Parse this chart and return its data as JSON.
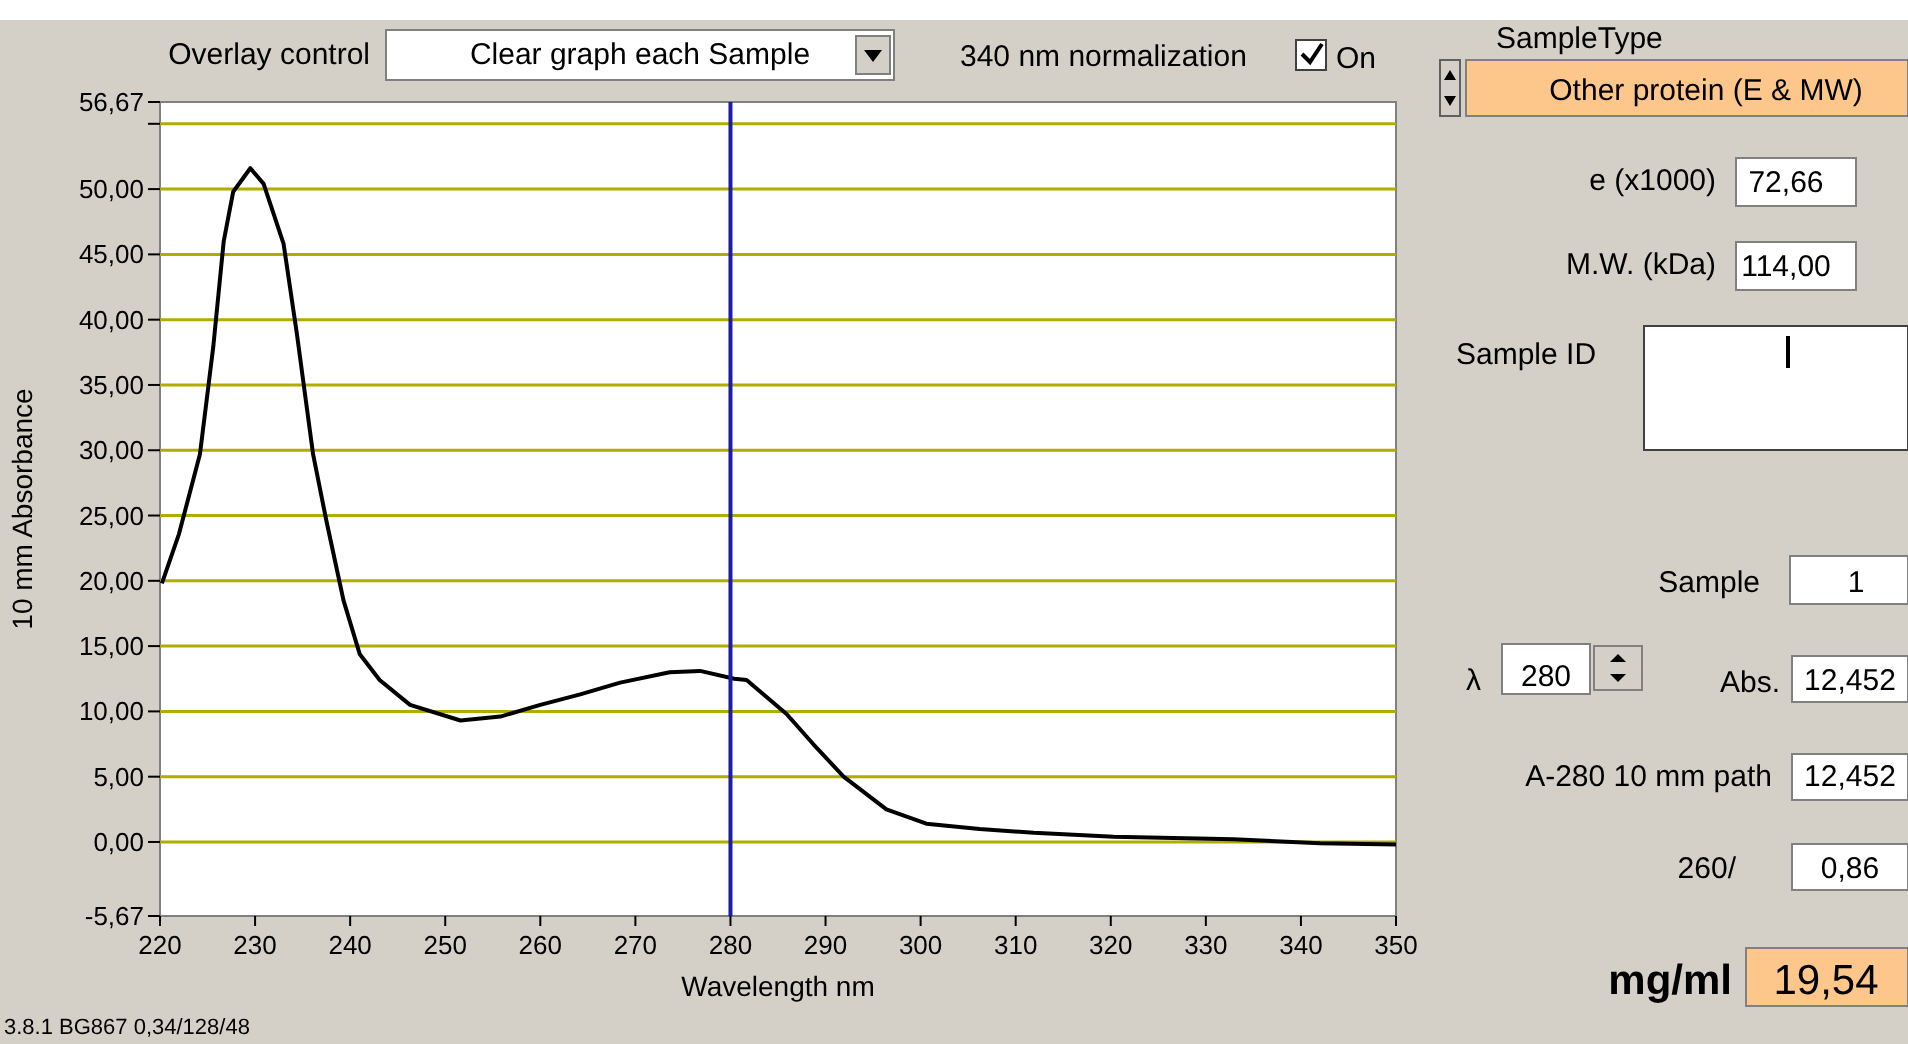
{
  "chart_data": [
    {
      "type": "line",
      "xlabel": "Wavelength nm",
      "ylabel": "10 mm Absorbance",
      "xlim": [
        220,
        350
      ],
      "xticks": [
        220,
        230,
        240,
        250,
        260,
        270,
        280,
        290,
        300,
        310,
        320,
        330,
        340,
        350
      ],
      "ylim": [
        -5.67,
        56.67
      ],
      "yticks": [
        {
          "value": -5.67,
          "label": "-5,67"
        },
        {
          "value": 0,
          "label": "0,00"
        },
        {
          "value": 5,
          "label": "5,00"
        },
        {
          "value": 10,
          "label": "10,00"
        },
        {
          "value": 15,
          "label": "15,00"
        },
        {
          "value": 20,
          "label": "20,00"
        },
        {
          "value": 25,
          "label": "25,00"
        },
        {
          "value": 30,
          "label": "30,00"
        },
        {
          "value": 35,
          "label": "35,00"
        },
        {
          "value": 40,
          "label": "40,00"
        },
        {
          "value": 45,
          "label": "45,00"
        },
        {
          "value": 50,
          "label": "50,00"
        },
        {
          "value": 55,
          "label": null
        },
        {
          "value": 56.67,
          "label": "56,67"
        }
      ],
      "grid": "y",
      "marker": "none",
      "line_style": "solid",
      "x": [
        220.2,
        222.0,
        224.2,
        225.6,
        226.7,
        227.7,
        229.5,
        230.9,
        233.0,
        234.4,
        236.1,
        237.5,
        239.3,
        241.0,
        243.1,
        246.3,
        251.6,
        255.8,
        260.0,
        264.2,
        268.4,
        273.6,
        276.8,
        280.4,
        281.7,
        285.9,
        288.7,
        291.9,
        296.4,
        300.6,
        306.2,
        311.9,
        320.3,
        332.9,
        342.0,
        350.0
      ],
      "series": [
        {
          "color": "#000000",
          "values": [
            19.8,
            23.6,
            29.7,
            37.9,
            46.0,
            49.8,
            51.6,
            50.4,
            45.8,
            38.9,
            29.7,
            24.6,
            18.5,
            14.4,
            12.4,
            10.5,
            9.3,
            9.6,
            10.5,
            11.3,
            12.2,
            13.0,
            13.1,
            12.5,
            12.4,
            9.8,
            7.5,
            5.0,
            2.5,
            1.4,
            1.0,
            0.7,
            0.4,
            0.2,
            -0.1,
            -0.2
          ]
        }
      ],
      "ref_lines": [
        {
          "axis": "x",
          "value": 280,
          "color": "#1c1ca8"
        }
      ],
      "annotations": [
        "Overlay control",
        "Clear graph each Sample",
        "340 nm normalization",
        "On",
        "3.8.1 BG867 0,34/128/48"
      ]
    },
    {
      "type": "other",
      "annotations": [
        "SampleType",
        "Other protein (E & MW)",
        "e  (x1000)",
        "72,66",
        "M.W. (kDa)",
        "114,00",
        "Sample ID",
        "Sample",
        "1",
        "λ",
        "280",
        "Abs.",
        "12,452",
        "A-280 10 mm path",
        "12,452",
        "260/",
        "0,86",
        "mg/ml",
        "19,54"
      ]
    }
  ]
}
